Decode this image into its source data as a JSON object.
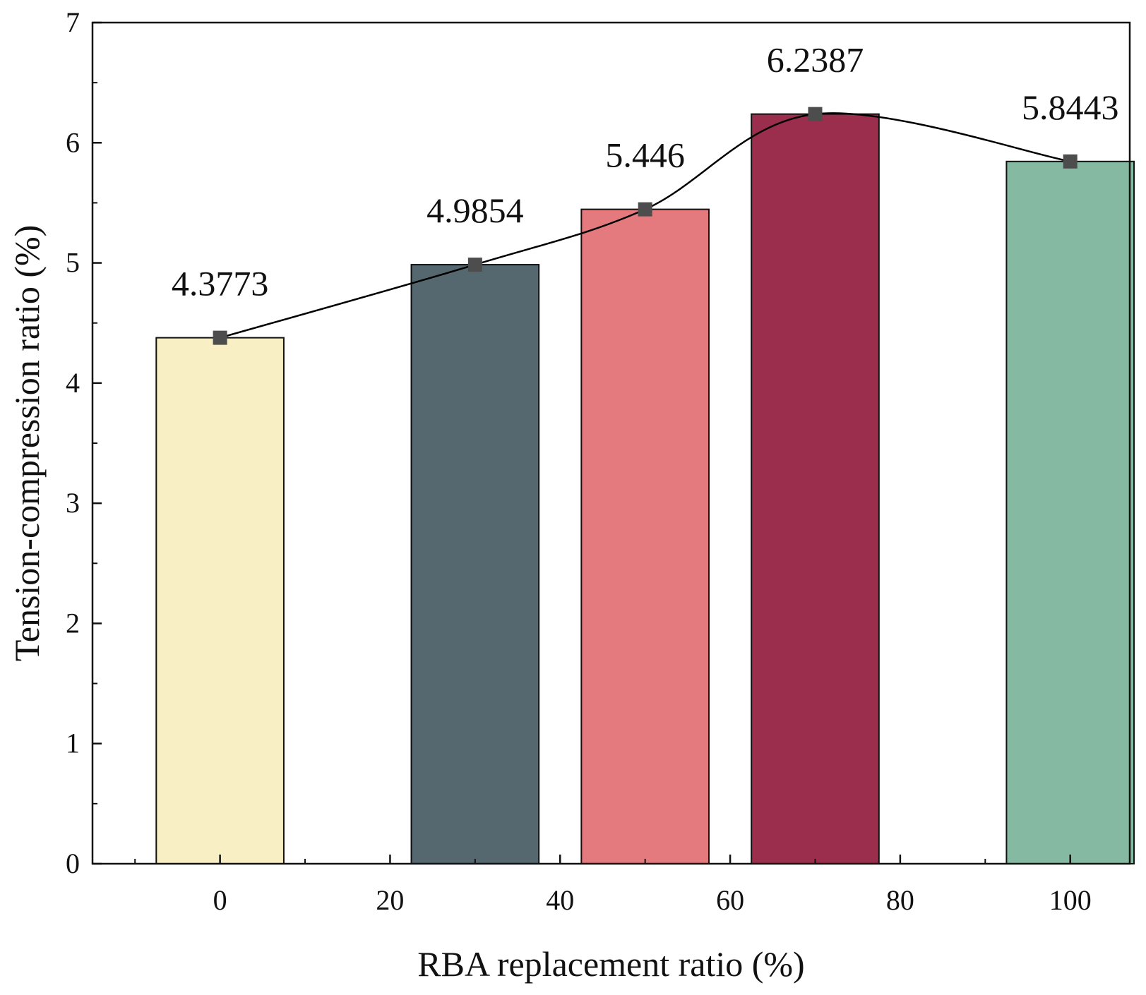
{
  "chart_data": {
    "type": "bar",
    "title": "",
    "xlabel": "RBA replacement ratio (%)",
    "ylabel": "Tension-compression ratio (%)",
    "xlim": [
      -15,
      107
    ],
    "ylim": [
      0,
      7
    ],
    "xticks": [
      0,
      20,
      40,
      60,
      80,
      100
    ],
    "yticks": [
      0,
      1,
      2,
      3,
      4,
      5,
      6,
      7
    ],
    "bar_width": 15,
    "grid": false,
    "series": [
      {
        "name": "Tension-compression ratio",
        "x": [
          0,
          30,
          50,
          70,
          100
        ],
        "values": [
          4.3773,
          4.9854,
          5.446,
          6.2387,
          5.8443
        ],
        "labels": [
          "4.3773",
          "4.9854",
          "5.446",
          "6.2387",
          "5.8443"
        ],
        "colors": [
          "#f9efc4",
          "#55686f",
          "#e47a7d",
          "#9c2e4d",
          "#86b9a1"
        ]
      }
    ],
    "fit_curve": {
      "type": "smooth line through points",
      "color": "#000000"
    },
    "marker_color": "#4d4d4d"
  }
}
